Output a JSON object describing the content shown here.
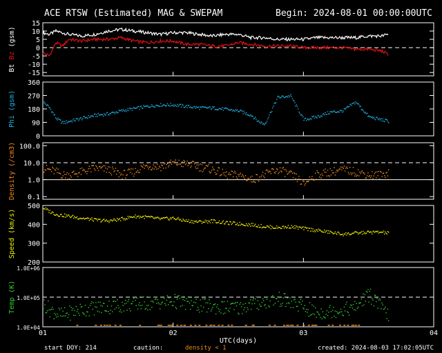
{
  "header": {
    "title": "ACE RTSW (Estimated) MAG & SWEPAM",
    "begin": "Begin: 2024-08-01 00:00:00UTC"
  },
  "footer": {
    "start_doy": "start DOY: 214",
    "caution": "caution:",
    "density_note": "density < 1",
    "created": "created: 2024-08-03 17:02:05UTC"
  },
  "colors": {
    "bt": "#ffffff",
    "bz": "#e01010",
    "phi": "#20b0e0",
    "density": "#f08a1c",
    "speed": "#f0f000",
    "temp": "#30d030",
    "caution": "#f08a1c",
    "frame": "#ffffff"
  },
  "chart_data": [
    {
      "type": "line",
      "id": "mag",
      "ylabel_parts": [
        "Bt",
        "Bz",
        "(gsm)"
      ],
      "ylim": [
        -17,
        15
      ],
      "yticks": [
        "15",
        "10",
        "5",
        "0",
        "-5",
        "-10",
        "-15"
      ],
      "ytick_values": [
        15,
        10,
        5,
        0,
        -5,
        -10,
        -15
      ],
      "reference_lines": [
        0
      ],
      "x": [
        1.0,
        1.05,
        1.1,
        1.15,
        1.2,
        1.3,
        1.4,
        1.5,
        1.6,
        1.7,
        1.8,
        1.9,
        2.0,
        2.1,
        2.2,
        2.3,
        2.4,
        2.5,
        2.6,
        2.7,
        2.8,
        2.9,
        3.0,
        3.1,
        3.2,
        3.3,
        3.4,
        3.5,
        3.6,
        3.65
      ],
      "series": [
        {
          "name": "Bt",
          "values": [
            9,
            8,
            10,
            9,
            8,
            7,
            8,
            10,
            11,
            10,
            9,
            8,
            9,
            9,
            8,
            7,
            8,
            8,
            6,
            6,
            5,
            5,
            5,
            6,
            6,
            6,
            6,
            7,
            7,
            8
          ]
        },
        {
          "name": "Bz",
          "values": [
            -3,
            -5,
            3,
            1,
            5,
            4,
            5,
            5,
            6,
            4,
            3,
            4,
            4,
            2,
            2,
            1,
            1,
            3,
            2,
            1,
            1,
            1,
            0,
            0,
            0,
            0,
            -1,
            -1,
            -2,
            -4
          ]
        }
      ]
    },
    {
      "type": "scatter",
      "id": "phi",
      "ylabel": "Phi (gsm)",
      "ylim": [
        0,
        360
      ],
      "yticks": [
        "360",
        "270",
        "180",
        "90",
        "0"
      ],
      "ytick_values": [
        360,
        270,
        180,
        90,
        0
      ],
      "reference_lines": [],
      "x": [
        1.0,
        1.05,
        1.1,
        1.15,
        1.2,
        1.3,
        1.4,
        1.5,
        1.6,
        1.7,
        1.8,
        1.9,
        2.0,
        2.1,
        2.2,
        2.3,
        2.4,
        2.5,
        2.6,
        2.65,
        2.7,
        2.8,
        2.9,
        3.0,
        3.1,
        3.2,
        3.3,
        3.4,
        3.5,
        3.6,
        3.65
      ],
      "series": [
        {
          "name": "Phi",
          "values": [
            230,
            190,
            120,
            90,
            100,
            120,
            140,
            150,
            170,
            185,
            200,
            210,
            210,
            200,
            190,
            190,
            180,
            170,
            140,
            100,
            80,
            260,
            270,
            110,
            130,
            160,
            170,
            230,
            130,
            110,
            100
          ]
        }
      ]
    },
    {
      "type": "scatter",
      "id": "density",
      "ylabel": "Density (/cm3)",
      "yscale": "log",
      "ylim": [
        0.07,
        150
      ],
      "yticks": [
        "100.0",
        "10.0",
        "1.0",
        "0.1"
      ],
      "ytick_values": [
        100,
        10,
        1,
        0.1
      ],
      "reference_lines": [
        10,
        1
      ],
      "x": [
        1.0,
        1.05,
        1.1,
        1.15,
        1.2,
        1.3,
        1.4,
        1.5,
        1.6,
        1.7,
        1.8,
        1.9,
        2.0,
        2.1,
        2.2,
        2.3,
        2.4,
        2.5,
        2.6,
        2.7,
        2.8,
        2.9,
        3.0,
        3.1,
        3.2,
        3.3,
        3.4,
        3.5,
        3.6,
        3.65
      ],
      "series": [
        {
          "name": "Density",
          "values": [
            5,
            4,
            3,
            2,
            2,
            3,
            5,
            4,
            2,
            3,
            7,
            6,
            10,
            9,
            6,
            4,
            2,
            2,
            1,
            2,
            4,
            2,
            0.5,
            2,
            3,
            4,
            3,
            2,
            2,
            3
          ]
        }
      ]
    },
    {
      "type": "scatter",
      "id": "speed",
      "ylabel": "Speed (km/s)",
      "ylim": [
        200,
        500
      ],
      "yticks": [
        "500",
        "400",
        "300",
        "200"
      ],
      "ytick_values": [
        500,
        400,
        300,
        200
      ],
      "reference_lines": [],
      "x": [
        1.0,
        1.05,
        1.1,
        1.15,
        1.2,
        1.3,
        1.4,
        1.5,
        1.6,
        1.7,
        1.8,
        1.9,
        2.0,
        2.1,
        2.2,
        2.3,
        2.4,
        2.5,
        2.6,
        2.7,
        2.8,
        2.9,
        3.0,
        3.1,
        3.2,
        3.3,
        3.4,
        3.5,
        3.6,
        3.65
      ],
      "series": [
        {
          "name": "Speed",
          "values": [
            490,
            470,
            455,
            450,
            445,
            435,
            425,
            420,
            430,
            445,
            440,
            430,
            435,
            420,
            415,
            420,
            410,
            405,
            400,
            390,
            385,
            390,
            380,
            370,
            360,
            350,
            355,
            360,
            360,
            355
          ]
        }
      ]
    },
    {
      "type": "scatter",
      "id": "temp",
      "ylabel": "Temp (K)",
      "yscale": "log",
      "ylim": [
        10000,
        1000000
      ],
      "yticks": [
        "1.0E+06",
        "1.0E+05",
        "1.0E+04"
      ],
      "ytick_values": [
        1000000,
        100000,
        10000
      ],
      "reference_lines": [
        100000
      ],
      "x": [
        1.0,
        1.05,
        1.1,
        1.15,
        1.2,
        1.3,
        1.4,
        1.5,
        1.6,
        1.7,
        1.8,
        1.9,
        2.0,
        2.1,
        2.2,
        2.3,
        2.4,
        2.5,
        2.6,
        2.7,
        2.8,
        2.9,
        3.0,
        3.1,
        3.2,
        3.3,
        3.4,
        3.5,
        3.6,
        3.65
      ],
      "series": [
        {
          "name": "Temp",
          "values": [
            60000,
            40000,
            30000,
            25000,
            30000,
            40000,
            45000,
            50000,
            55000,
            60000,
            65000,
            70000,
            75000,
            65000,
            55000,
            50000,
            45000,
            45000,
            60000,
            70000,
            90000,
            70000,
            45000,
            30000,
            35000,
            40000,
            45000,
            120000,
            40000,
            25000
          ]
        }
      ]
    }
  ],
  "xaxis": {
    "label": "UTC(days)",
    "tick_labels": [
      "01",
      "02",
      "03",
      "04"
    ],
    "tick_values": [
      1,
      2,
      3,
      4
    ],
    "xlim": [
      1,
      4
    ]
  }
}
